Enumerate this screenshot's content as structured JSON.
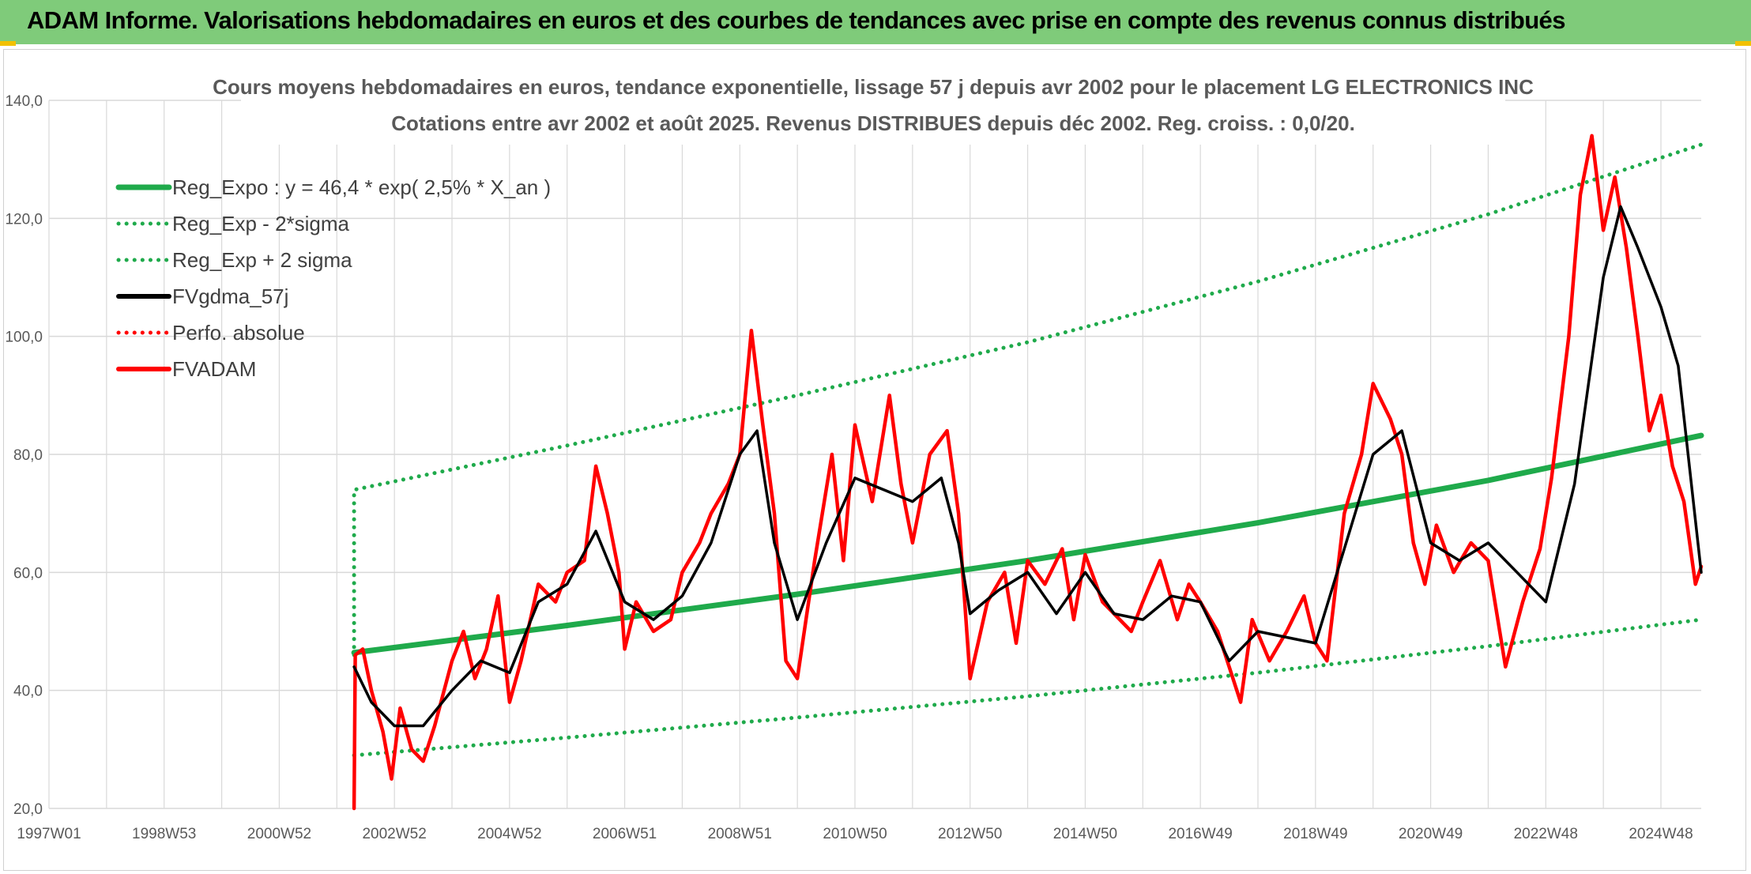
{
  "banner": {
    "title": "ADAM Informe. Valorisations hebdomadaires en euros et des courbes de tendances avec prise en compte des revenus connus distribués"
  },
  "colors": {
    "banner_bg": "#7fcb7a",
    "reg_expo": "#1faa4b",
    "sigma_bands": "#1faa4b",
    "fvgdma": "#000000",
    "perfo": "#ff0000",
    "fvadam": "#ff0000",
    "grid": "#d9d9d9",
    "corner_mark": "#f2c100"
  },
  "chart_data": {
    "type": "line",
    "title": [
      "Cours moyens hebdomadaires en euros, tendance exponentielle, lissage 57 j depuis avr 2002 pour le placement LG ELECTRONICS INC",
      "Cotations entre avr 2002 et août 2025. Revenus DISTRIBUES depuis déc 2002. Reg. croiss. : 0,0/20."
    ],
    "xlabel": "",
    "ylabel": "",
    "ylim": [
      20,
      140
    ],
    "yticks": [
      "20,0",
      "40,0",
      "60,0",
      "80,0",
      "100,0",
      "120,0",
      "140,0"
    ],
    "xlim": [
      1997.0,
      2025.7
    ],
    "xticks": [
      {
        "label": "1997W01",
        "x": 1997.0
      },
      {
        "label": "1998W53",
        "x": 1999.0
      },
      {
        "label": "2000W52",
        "x": 2001.0
      },
      {
        "label": "2002W52",
        "x": 2003.0
      },
      {
        "label": "2004W52",
        "x": 2005.0
      },
      {
        "label": "2006W51",
        "x": 2007.0
      },
      {
        "label": "2008W51",
        "x": 2009.0
      },
      {
        "label": "2010W50",
        "x": 2011.0
      },
      {
        "label": "2012W50",
        "x": 2013.0
      },
      {
        "label": "2014W50",
        "x": 2015.0
      },
      {
        "label": "2016W49",
        "x": 2017.0
      },
      {
        "label": "2018W49",
        "x": 2019.0
      },
      {
        "label": "2020W49",
        "x": 2021.0
      },
      {
        "label": "2022W48",
        "x": 2023.0
      },
      {
        "label": "2024W48",
        "x": 2025.0
      }
    ],
    "grid": true,
    "legend_position": "top-left",
    "series": [
      {
        "name": "Reg_Expo : y = 46,4 * exp( 2,5% *  X_an )",
        "style": "solid-thick",
        "color": "#1faa4b",
        "points": [
          [
            2002.3,
            46.4
          ],
          [
            2006.0,
            51.0
          ],
          [
            2010.0,
            56.3
          ],
          [
            2014.0,
            62.0
          ],
          [
            2018.0,
            68.4
          ],
          [
            2022.0,
            75.6
          ],
          [
            2025.7,
            83.2
          ]
        ]
      },
      {
        "name": "Reg_Exp - 2*sigma",
        "style": "dotted",
        "color": "#1faa4b",
        "points": [
          [
            2002.3,
            29.0
          ],
          [
            2006.0,
            32.0
          ],
          [
            2010.0,
            35.4
          ],
          [
            2014.0,
            39.0
          ],
          [
            2018.0,
            43.0
          ],
          [
            2022.0,
            47.5
          ],
          [
            2025.7,
            52.0
          ]
        ]
      },
      {
        "name": "Reg_Exp + 2 sigma",
        "style": "dotted",
        "color": "#1faa4b",
        "points": [
          [
            2002.3,
            46.0
          ],
          [
            2002.3,
            74.0
          ],
          [
            2006.0,
            81.5
          ],
          [
            2010.0,
            90.0
          ],
          [
            2014.0,
            99.0
          ],
          [
            2018.0,
            109.3
          ],
          [
            2022.0,
            120.7
          ],
          [
            2025.7,
            132.5
          ]
        ]
      },
      {
        "name": "FVgdma_57j",
        "style": "solid",
        "color": "#000000",
        "points": [
          [
            2002.3,
            44.0
          ],
          [
            2002.6,
            38.0
          ],
          [
            2003.0,
            34.0
          ],
          [
            2003.5,
            34.0
          ],
          [
            2004.0,
            40.0
          ],
          [
            2004.5,
            45.0
          ],
          [
            2005.0,
            43.0
          ],
          [
            2005.5,
            55.0
          ],
          [
            2006.0,
            58.0
          ],
          [
            2006.5,
            67.0
          ],
          [
            2007.0,
            55.0
          ],
          [
            2007.5,
            52.0
          ],
          [
            2008.0,
            56.0
          ],
          [
            2008.5,
            65.0
          ],
          [
            2009.0,
            80.0
          ],
          [
            2009.3,
            84.0
          ],
          [
            2009.6,
            65.0
          ],
          [
            2010.0,
            52.0
          ],
          [
            2010.5,
            65.0
          ],
          [
            2011.0,
            76.0
          ],
          [
            2011.5,
            74.0
          ],
          [
            2012.0,
            72.0
          ],
          [
            2012.5,
            76.0
          ],
          [
            2012.8,
            65.0
          ],
          [
            2013.0,
            53.0
          ],
          [
            2013.5,
            57.0
          ],
          [
            2014.0,
            60.0
          ],
          [
            2014.5,
            53.0
          ],
          [
            2015.0,
            60.0
          ],
          [
            2015.5,
            53.0
          ],
          [
            2016.0,
            52.0
          ],
          [
            2016.5,
            56.0
          ],
          [
            2017.0,
            55.0
          ],
          [
            2017.5,
            45.0
          ],
          [
            2018.0,
            50.0
          ],
          [
            2018.5,
            49.0
          ],
          [
            2019.0,
            48.0
          ],
          [
            2019.5,
            64.0
          ],
          [
            2020.0,
            80.0
          ],
          [
            2020.5,
            84.0
          ],
          [
            2021.0,
            65.0
          ],
          [
            2021.5,
            62.0
          ],
          [
            2022.0,
            65.0
          ],
          [
            2022.5,
            60.0
          ],
          [
            2023.0,
            55.0
          ],
          [
            2023.5,
            75.0
          ],
          [
            2024.0,
            110.0
          ],
          [
            2024.3,
            122.0
          ],
          [
            2024.6,
            115.0
          ],
          [
            2025.0,
            105.0
          ],
          [
            2025.3,
            95.0
          ],
          [
            2025.7,
            60.0
          ]
        ]
      },
      {
        "name": "Perfo. absolue",
        "style": "dotted",
        "color": "#ff0000",
        "points": []
      },
      {
        "name": "FVADAM",
        "style": "solid",
        "color": "#ff0000",
        "points": [
          [
            2002.3,
            20.0
          ],
          [
            2002.32,
            46.0
          ],
          [
            2002.45,
            47.0
          ],
          [
            2002.6,
            40.0
          ],
          [
            2002.8,
            33.0
          ],
          [
            2002.95,
            25.0
          ],
          [
            2003.1,
            37.0
          ],
          [
            2003.3,
            30.0
          ],
          [
            2003.5,
            28.0
          ],
          [
            2003.7,
            34.0
          ],
          [
            2004.0,
            45.0
          ],
          [
            2004.2,
            50.0
          ],
          [
            2004.4,
            42.0
          ],
          [
            2004.6,
            47.0
          ],
          [
            2004.8,
            56.0
          ],
          [
            2005.0,
            38.0
          ],
          [
            2005.2,
            45.0
          ],
          [
            2005.5,
            58.0
          ],
          [
            2005.8,
            55.0
          ],
          [
            2006.0,
            60.0
          ],
          [
            2006.3,
            62.0
          ],
          [
            2006.5,
            78.0
          ],
          [
            2006.7,
            70.0
          ],
          [
            2006.9,
            60.0
          ],
          [
            2007.0,
            47.0
          ],
          [
            2007.2,
            55.0
          ],
          [
            2007.5,
            50.0
          ],
          [
            2007.8,
            52.0
          ],
          [
            2008.0,
            60.0
          ],
          [
            2008.3,
            65.0
          ],
          [
            2008.5,
            70.0
          ],
          [
            2008.8,
            75.0
          ],
          [
            2009.0,
            80.0
          ],
          [
            2009.2,
            101.0
          ],
          [
            2009.4,
            85.0
          ],
          [
            2009.6,
            70.0
          ],
          [
            2009.8,
            45.0
          ],
          [
            2010.0,
            42.0
          ],
          [
            2010.3,
            62.0
          ],
          [
            2010.6,
            80.0
          ],
          [
            2010.8,
            62.0
          ],
          [
            2011.0,
            85.0
          ],
          [
            2011.3,
            72.0
          ],
          [
            2011.6,
            90.0
          ],
          [
            2011.8,
            75.0
          ],
          [
            2012.0,
            65.0
          ],
          [
            2012.3,
            80.0
          ],
          [
            2012.6,
            84.0
          ],
          [
            2012.8,
            70.0
          ],
          [
            2013.0,
            42.0
          ],
          [
            2013.3,
            55.0
          ],
          [
            2013.6,
            60.0
          ],
          [
            2013.8,
            48.0
          ],
          [
            2014.0,
            62.0
          ],
          [
            2014.3,
            58.0
          ],
          [
            2014.6,
            64.0
          ],
          [
            2014.8,
            52.0
          ],
          [
            2015.0,
            63.0
          ],
          [
            2015.3,
            55.0
          ],
          [
            2015.6,
            52.0
          ],
          [
            2015.8,
            50.0
          ],
          [
            2016.0,
            55.0
          ],
          [
            2016.3,
            62.0
          ],
          [
            2016.6,
            52.0
          ],
          [
            2016.8,
            58.0
          ],
          [
            2017.0,
            55.0
          ],
          [
            2017.3,
            50.0
          ],
          [
            2017.5,
            44.0
          ],
          [
            2017.7,
            38.0
          ],
          [
            2017.9,
            52.0
          ],
          [
            2018.2,
            45.0
          ],
          [
            2018.5,
            50.0
          ],
          [
            2018.8,
            56.0
          ],
          [
            2019.0,
            48.0
          ],
          [
            2019.2,
            45.0
          ],
          [
            2019.5,
            70.0
          ],
          [
            2019.8,
            80.0
          ],
          [
            2020.0,
            92.0
          ],
          [
            2020.3,
            86.0
          ],
          [
            2020.5,
            80.0
          ],
          [
            2020.7,
            65.0
          ],
          [
            2020.9,
            58.0
          ],
          [
            2021.1,
            68.0
          ],
          [
            2021.4,
            60.0
          ],
          [
            2021.7,
            65.0
          ],
          [
            2022.0,
            62.0
          ],
          [
            2022.3,
            44.0
          ],
          [
            2022.6,
            55.0
          ],
          [
            2022.9,
            64.0
          ],
          [
            2023.1,
            76.0
          ],
          [
            2023.4,
            100.0
          ],
          [
            2023.6,
            124.0
          ],
          [
            2023.8,
            134.0
          ],
          [
            2024.0,
            118.0
          ],
          [
            2024.2,
            127.0
          ],
          [
            2024.4,
            115.0
          ],
          [
            2024.6,
            100.0
          ],
          [
            2024.8,
            84.0
          ],
          [
            2025.0,
            90.0
          ],
          [
            2025.2,
            78.0
          ],
          [
            2025.4,
            72.0
          ],
          [
            2025.6,
            58.0
          ],
          [
            2025.7,
            61.0
          ]
        ]
      }
    ]
  }
}
